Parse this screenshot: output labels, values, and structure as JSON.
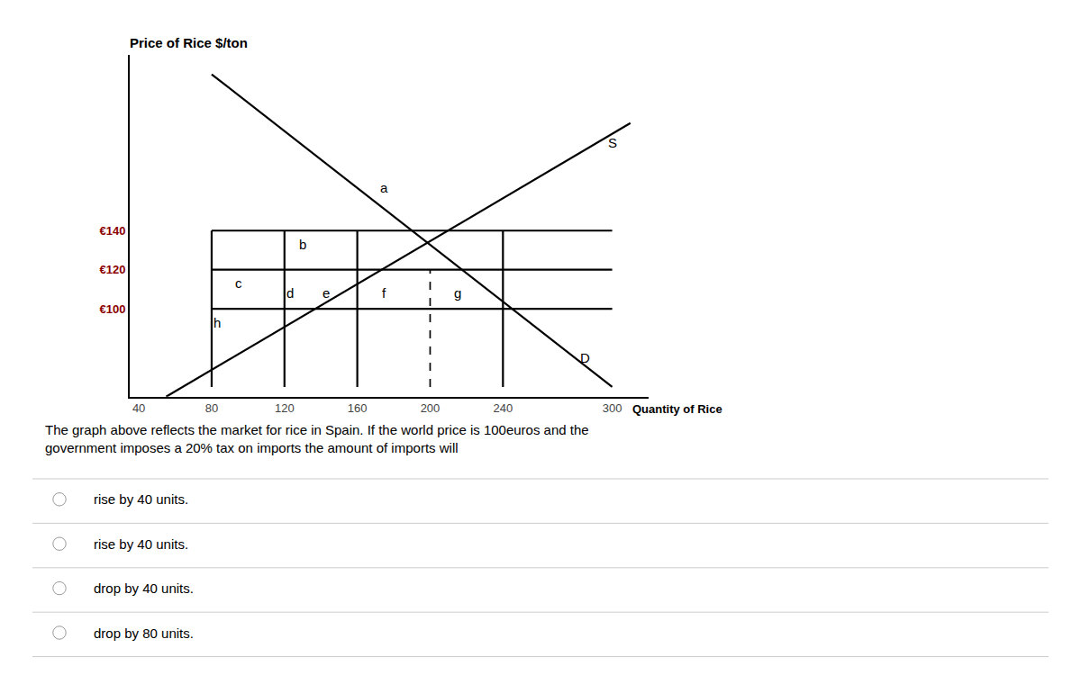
{
  "chart_data": {
    "type": "line",
    "title": "Price of Rice $/ton",
    "xlim": [
      35,
      320
    ],
    "xticks": [
      40,
      80,
      120,
      160,
      200,
      240,
      300
    ],
    "ylim": [
      55,
      230
    ],
    "yticks": [
      {
        "value": 100,
        "label": "€100"
      },
      {
        "value": 120,
        "label": "€120"
      },
      {
        "value": 140,
        "label": "€140"
      }
    ],
    "grid": false,
    "series": [
      {
        "x": [
          80,
          300
        ],
        "values": [
          220,
          60
        ],
        "color": "#000000",
        "line_style": "solid"
      },
      {
        "x": [
          55,
          310
        ],
        "values": [
          55,
          195
        ],
        "color": "#000000",
        "line_style": "solid"
      },
      {
        "x": [
          80,
          300
        ],
        "values": [
          140,
          140
        ],
        "color": "#000000",
        "line_style": "solid"
      },
      {
        "x": [
          80,
          300
        ],
        "values": [
          120,
          120
        ],
        "color": "#000000",
        "line_style": "solid"
      },
      {
        "x": [
          80,
          300
        ],
        "values": [
          100,
          100
        ],
        "color": "#000000",
        "line_style": "solid"
      },
      {
        "x": [
          80,
          80
        ],
        "values": [
          60,
          140
        ],
        "color": "#000000",
        "line_style": "solid"
      },
      {
        "x": [
          120,
          120
        ],
        "values": [
          60,
          140
        ],
        "color": "#000000",
        "line_style": "solid"
      },
      {
        "x": [
          160,
          160
        ],
        "values": [
          60,
          140
        ],
        "color": "#000000",
        "line_style": "solid"
      },
      {
        "x": [
          240,
          240
        ],
        "values": [
          60,
          140
        ],
        "color": "#000000",
        "line_style": "solid"
      },
      {
        "x": [
          200,
          200
        ],
        "values": [
          60,
          120
        ],
        "color": "#000000",
        "line_style": "dashed"
      }
    ],
    "annotations": [
      {
        "text": "S",
        "x": 300,
        "y": 185
      },
      {
        "text": "D",
        "x": 285,
        "y": 75
      },
      {
        "text": "a",
        "x": 175,
        "y": 162
      },
      {
        "text": "b",
        "x": 130,
        "y": 133
      },
      {
        "text": "c",
        "x": 95,
        "y": 113
      },
      {
        "text": "d",
        "x": 123,
        "y": 108
      },
      {
        "text": "e",
        "x": 143,
        "y": 108
      },
      {
        "text": "f",
        "x": 175,
        "y": 108
      },
      {
        "text": "g",
        "x": 215,
        "y": 108
      },
      {
        "text": "h",
        "x": 83,
        "y": 93
      },
      {
        "text": "Quantity of Rice",
        "x": 310,
        "y": 55
      }
    ],
    "question": "The graph above reflects the market for rice in Spain. If the world price is 100euros and the\ngovernment imposes a 20% tax on imports the amount of imports will",
    "choices": [
      "rise by 40 units.",
      "rise by 40 units.",
      "drop by 40 units.",
      "drop by 80 units."
    ]
  }
}
